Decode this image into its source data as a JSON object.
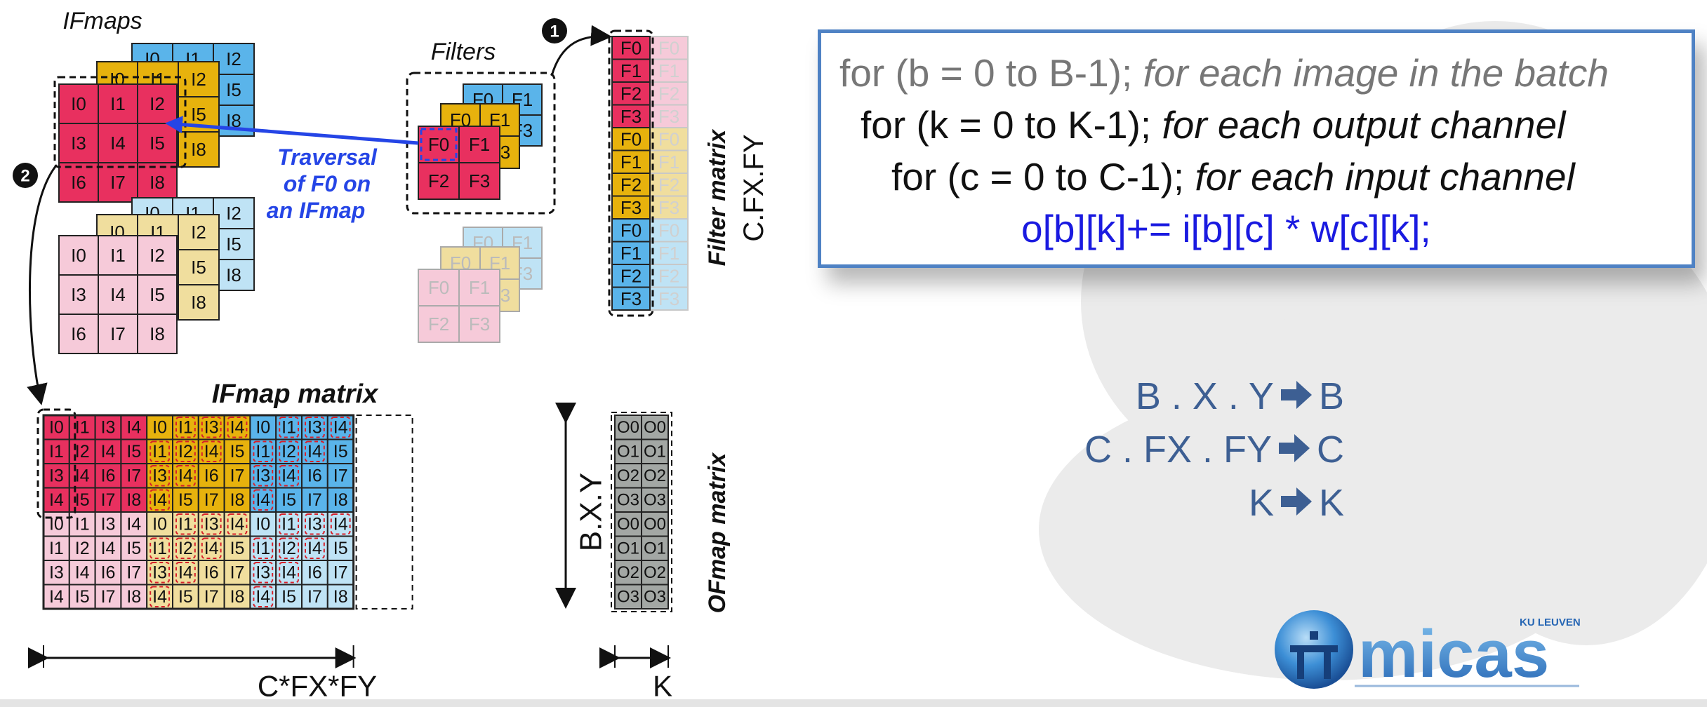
{
  "code": {
    "line0": {
      "code": "for (b = 0 to B-1);",
      "comment": "for each image in the batch"
    },
    "line1": {
      "code": "for (k = 0 to K-1);",
      "comment": "for each output channel"
    },
    "line2": {
      "code": "for (c = 0 to C-1);",
      "comment": "for each input channel"
    },
    "line3": "o[b][k]+= i[b][c] * w[c][k];"
  },
  "mapping": [
    {
      "from": "B . X . Y",
      "to": "B"
    },
    {
      "from": "C . FX . FY",
      "to": "C"
    },
    {
      "from": "K",
      "to": "K"
    }
  ],
  "diagram": {
    "ifmaps_title": "IFmaps",
    "filters_title": "Filters",
    "traversal_label": [
      "Traversal",
      "of F0 on",
      "an IFmap"
    ],
    "ifmap_matrix_title": "IFmap matrix",
    "filter_matrix_title": "Filter matrix",
    "filter_matrix_dim": "C.FX.FY",
    "ofmap_matrix_title": "OFmap matrix",
    "bxy_label": "B.X.Y",
    "cfxfy_label": "C*FX*FY",
    "k_label": "K",
    "step1": "1",
    "step2": "2",
    "map_labels": [
      "I0",
      "I1",
      "I2",
      "I3",
      "I4",
      "I5",
      "I6",
      "I7",
      "I8"
    ],
    "filter_labels": [
      "F0",
      "F1",
      "F2",
      "F3"
    ],
    "ofmap_labels": [
      "O0",
      "O1",
      "O2",
      "O3"
    ],
    "ifmap_row_indices": [
      [
        "I0",
        "I1",
        "I3",
        "I4"
      ],
      [
        "I1",
        "I2",
        "I4",
        "I5"
      ],
      [
        "I3",
        "I4",
        "I6",
        "I7"
      ],
      [
        "I4",
        "I5",
        "I7",
        "I8"
      ]
    ]
  },
  "logo": {
    "text": "micas",
    "subtext": "KU LEUVEN"
  },
  "colors": {
    "red": "#e8305f",
    "yellow": "#e7b20d",
    "blue": "#5ab4ea",
    "pink": "#f6cad9",
    "cream": "#f0de9e",
    "light_blue": "#bfe3f5",
    "grey": "#a3a7a4",
    "accent_blue": "#2545e6",
    "code_blue": "#1a1ae0",
    "slate": "#3d5f93",
    "box_border": "#4f82c4"
  }
}
